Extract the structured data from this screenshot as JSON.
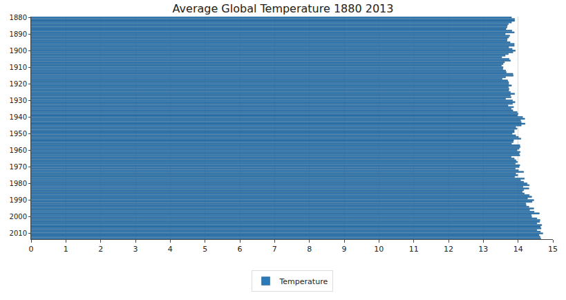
{
  "chart_data": {
    "type": "bar",
    "orientation": "horizontal",
    "title": "Average Global Temperature 1880 2013",
    "categories": [
      "1880",
      null,
      null,
      null,
      null,
      null,
      null,
      null,
      null,
      null,
      "1890",
      null,
      null,
      null,
      null,
      null,
      null,
      null,
      null,
      null,
      "1900",
      null,
      null,
      null,
      null,
      null,
      null,
      null,
      null,
      null,
      "1910",
      null,
      null,
      null,
      null,
      null,
      null,
      null,
      null,
      null,
      "1920",
      null,
      null,
      null,
      null,
      null,
      null,
      null,
      null,
      null,
      "1930",
      null,
      null,
      null,
      null,
      null,
      null,
      null,
      null,
      null,
      "1940",
      null,
      null,
      null,
      null,
      null,
      null,
      null,
      null,
      null,
      "1950",
      null,
      null,
      null,
      null,
      null,
      null,
      null,
      null,
      null,
      "1960",
      null,
      null,
      null,
      null,
      null,
      null,
      null,
      null,
      null,
      "1970",
      null,
      null,
      null,
      null,
      null,
      null,
      null,
      null,
      null,
      "1980",
      null,
      null,
      null,
      null,
      null,
      null,
      null,
      null,
      null,
      "1990",
      null,
      null,
      null,
      null,
      null,
      null,
      null,
      null,
      null,
      "2000",
      null,
      null,
      null,
      null,
      null,
      null,
      null,
      null,
      null,
      "2010",
      null,
      null,
      null
    ],
    "series": [
      {
        "name": "Temperature",
        "color": "#2b7bba",
        "values": [
          13.81,
          13.9,
          13.9,
          13.81,
          13.72,
          13.69,
          13.68,
          13.65,
          13.82,
          13.89,
          13.63,
          13.76,
          13.73,
          13.69,
          13.68,
          13.77,
          13.89,
          13.89,
          13.73,
          13.83,
          13.92,
          13.85,
          13.72,
          13.63,
          13.53,
          13.74,
          13.78,
          13.61,
          13.57,
          13.52,
          13.57,
          13.56,
          13.64,
          13.66,
          13.85,
          13.86,
          13.64,
          13.54,
          13.7,
          13.73,
          13.73,
          13.81,
          13.72,
          13.74,
          13.73,
          13.78,
          13.9,
          13.78,
          13.8,
          13.64,
          13.84,
          13.91,
          13.84,
          13.71,
          13.87,
          13.8,
          13.85,
          13.97,
          14.0,
          13.98,
          14.13,
          14.19,
          14.07,
          14.09,
          14.2,
          14.09,
          13.93,
          13.97,
          13.89,
          13.89,
          13.83,
          13.93,
          14.01,
          14.08,
          13.87,
          13.86,
          13.81,
          14.05,
          14.06,
          14.03,
          13.97,
          14.06,
          14.03,
          14.05,
          13.8,
          13.89,
          13.94,
          13.98,
          13.92,
          14.05,
          14.03,
          13.92,
          14.01,
          14.16,
          13.93,
          13.99,
          13.9,
          14.18,
          14.07,
          14.16,
          14.26,
          14.32,
          14.14,
          14.31,
          14.16,
          14.12,
          14.18,
          14.32,
          14.39,
          14.27,
          14.45,
          14.4,
          14.22,
          14.23,
          14.31,
          14.45,
          14.33,
          14.46,
          14.61,
          14.38,
          14.39,
          14.54,
          14.63,
          14.62,
          14.54,
          14.68,
          14.64,
          14.66,
          14.54,
          14.64,
          14.71,
          14.6,
          14.63,
          14.65
        ]
      }
    ],
    "xlim": [
      0,
      15
    ],
    "xticks": [
      0,
      1,
      2,
      3,
      4,
      5,
      6,
      7,
      8,
      9,
      10,
      11,
      12,
      13,
      14,
      15
    ],
    "grid": true,
    "legend": "bottom"
  }
}
